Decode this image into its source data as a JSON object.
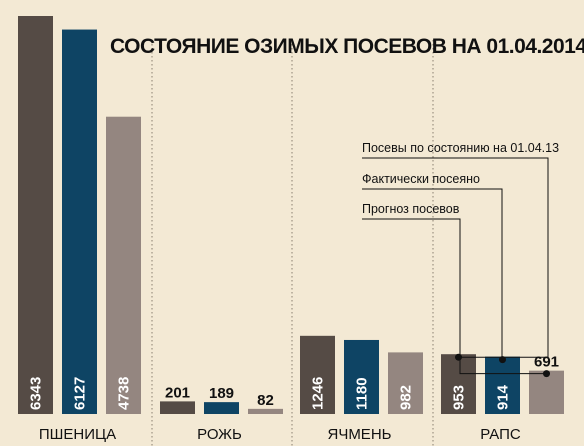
{
  "chart_data": {
    "type": "bar",
    "title": "СОСТОЯНИЕ ОЗИМЫХ ПОСЕВОВ НА 01.04.2014",
    "categories": [
      "ПШЕНИЦА",
      "РОЖЬ",
      "ЯЧМЕНЬ",
      "РАПС"
    ],
    "series": [
      {
        "name": "Посевы по состоянию на 01.04.13",
        "color": "#554b45",
        "values": [
          6343,
          201,
          1246,
          953
        ]
      },
      {
        "name": "Фактически посеяно",
        "color": "#0e4464",
        "values": [
          6127,
          189,
          1180,
          914
        ]
      },
      {
        "name": "Прогноз посевов",
        "color": "#948680",
        "values": [
          4738,
          82,
          982,
          691
        ]
      }
    ],
    "ylim": [
      0,
      6343
    ],
    "grid": false,
    "legend": "right, callouts pointing to РАПС bars"
  },
  "colors": {
    "background": "#f3e9d4",
    "separator": "#8a8070",
    "text": "#111111"
  }
}
